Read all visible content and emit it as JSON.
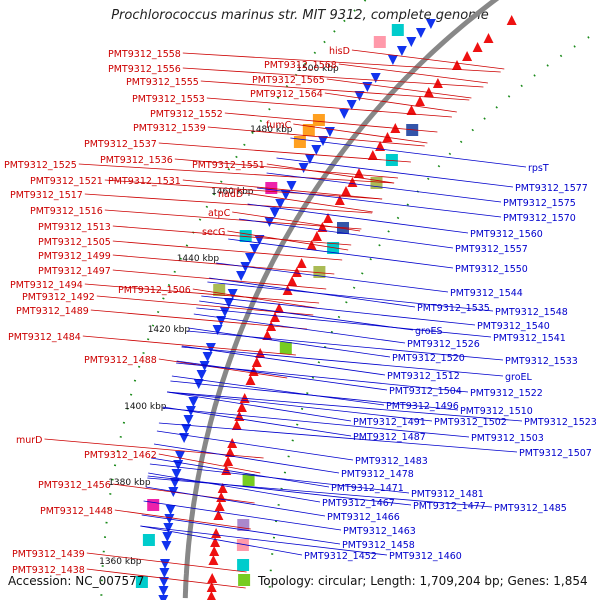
{
  "title": "Prochlorococcus marinus str. MIT 9312, complete genome",
  "accession": "Accession: NC_007577",
  "topology": "Topology: circular; Length: 1,709,204 bp; Genes: 1,854",
  "colors": {
    "forward_label": "#cc0000",
    "reverse_label": "#0000cc",
    "forward_arrow": "#ee1111",
    "reverse_arrow": "#1133ee",
    "backbone": "#888888"
  },
  "ticks": [
    {
      "label": "1500 kbp"
    },
    {
      "label": "1480 kbp"
    },
    {
      "label": "1460 kbp"
    },
    {
      "label": "1440 kbp"
    },
    {
      "label": "1420 kbp"
    },
    {
      "label": "1400 kbp"
    },
    {
      "label": "1380 kbp"
    },
    {
      "label": "1360 kbp"
    }
  ],
  "forward_labels": [
    "PMT9312_1558",
    "PMT9312_1556",
    "PMT9312_1555",
    "PMT9312_1553",
    "PMT9312_1552",
    "PMT9312_1539",
    "PMT9312_1537",
    "PMT9312_1536",
    "PMT9312_1525",
    "PMT9312_1521",
    "PMT9312_1517",
    "PMT9312_1516",
    "PMT9312_1513",
    "PMT9312_1505",
    "PMT9312_1499",
    "PMT9312_1497",
    "PMT9312_1494",
    "PMT9312_1492",
    "PMT9312_1489",
    "PMT9312_1484",
    "PMT9312_1488",
    "murD",
    "PMT9312_1462",
    "PMT9312_1456",
    "PMT9312_1448",
    "PMT9312_1439",
    "PMT9312_1438",
    "hisD",
    "PMT9312_1568",
    "PMT9312_1565",
    "PMT9312_1564",
    "fumC",
    "PMT9312_1551",
    "PMT9312_1531",
    "nadD",
    "atpC",
    "secG",
    "PMT9312_1506"
  ],
  "reverse_labels": [
    "rpsT",
    "PMT9312_1577",
    "PMT9312_1575",
    "PMT9312_1570",
    "PMT9312_1560",
    "PMT9312_1557",
    "PMT9312_1550",
    "PMT9312_1544",
    "PMT9312_1548",
    "PMT9312_1535",
    "PMT9312_1540",
    "PMT9312_1541",
    "groES",
    "PMT9312_1526",
    "PMT9312_1533",
    "PMT9312_1520",
    "PMT9312_1512",
    "groEL",
    "PMT9312_1504",
    "PMT9312_1522",
    "PMT9312_1496",
    "PMT9312_1510",
    "PMT9312_1491",
    "PMT9312_1502",
    "PMT9312_1523",
    "PMT9312_1487",
    "PMT9312_1503",
    "PMT9312_1507",
    "PMT9312_1483",
    "PMT9312_1478",
    "PMT9312_1471",
    "PMT9312_1481",
    "PMT9312_1467",
    "PMT9312_1477",
    "PMT9312_1485",
    "PMT9312_1466",
    "PMT9312_1463",
    "PMT9312_1458",
    "PMT9312_1452",
    "PMT9312_1460"
  ]
}
